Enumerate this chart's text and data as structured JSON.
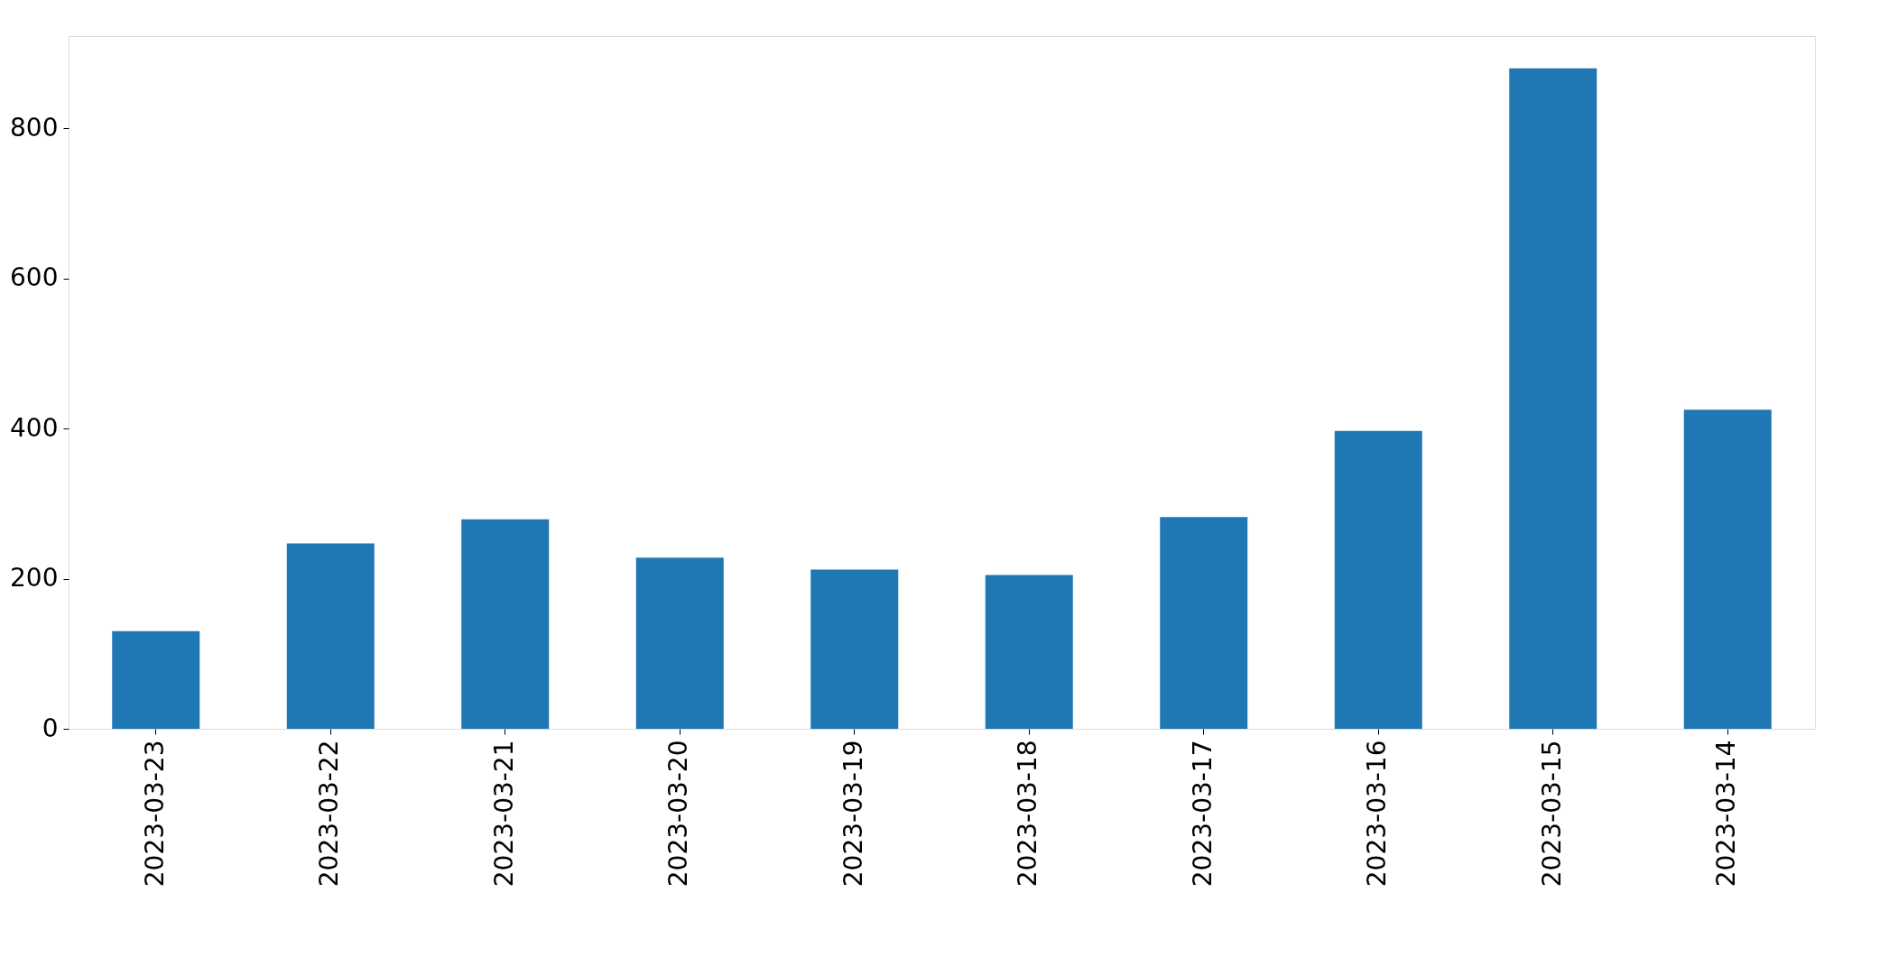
{
  "chart_data": {
    "type": "bar",
    "categories": [
      "2023-03-23",
      "2023-03-22",
      "2023-03-21",
      "2023-03-20",
      "2023-03-19",
      "2023-03-18",
      "2023-03-17",
      "2023-03-16",
      "2023-03-15",
      "2023-03-14"
    ],
    "values": [
      130,
      247,
      279,
      228,
      212,
      205,
      282,
      397,
      880,
      425
    ],
    "color": "#1f77b4",
    "ylim": [
      0,
      923
    ],
    "yticks": [
      0,
      200,
      400,
      600,
      800
    ],
    "grid": false
  }
}
